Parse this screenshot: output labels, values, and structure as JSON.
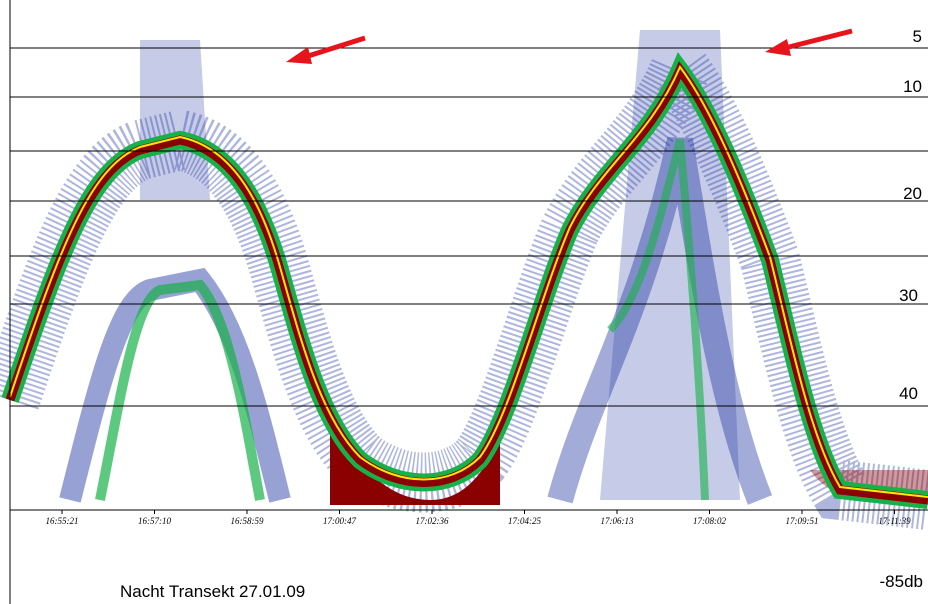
{
  "depth_labels": [
    "5",
    "10",
    "20",
    "30",
    "40"
  ],
  "time_labels": [
    "16:55:21",
    "16:57:10",
    "16:58:59",
    "17:00:47",
    "17:02:36",
    "17:04:25",
    "17:06:13",
    "17:08:02",
    "17:09:51",
    "17:11:39"
  ],
  "scale_label": "-85db",
  "caption": "Nacht Transekt 27.01.09"
}
